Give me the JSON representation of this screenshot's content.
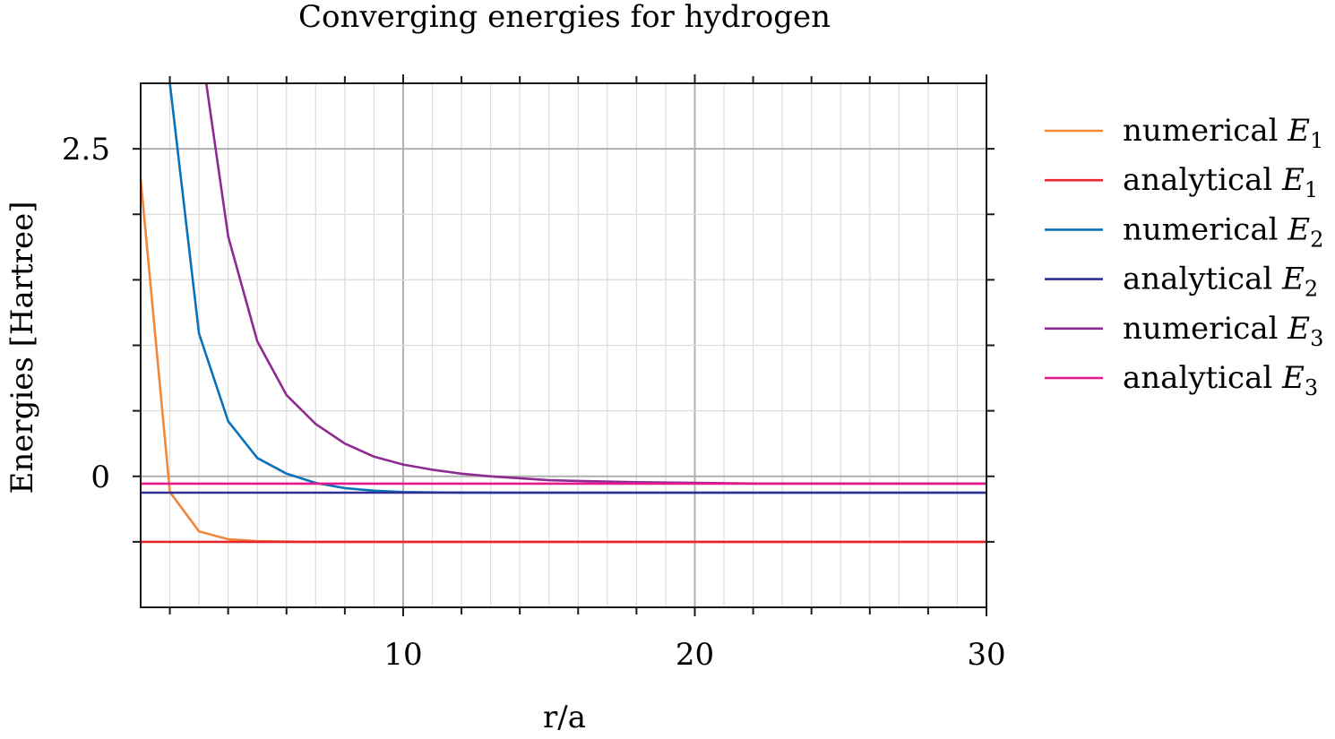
{
  "chart_data": {
    "type": "line",
    "title": "Converging energies for hydrogen",
    "xlabel": "r/a",
    "ylabel": "Energies [Hartree]",
    "xlim": [
      1,
      30
    ],
    "ylim": [
      -1,
      3
    ],
    "xticks": [
      10,
      20,
      30
    ],
    "xtick_labels": [
      "10",
      "20",
      "30"
    ],
    "yticks": [
      0,
      2.5
    ],
    "ytick_labels": [
      "0",
      "2.5"
    ],
    "grid": true,
    "legend_position": "outside-right",
    "series": [
      {
        "name": "numerical E",
        "subscript": "1",
        "color": "#f0883a",
        "x": [
          1,
          2,
          3,
          4,
          5,
          6,
          7,
          8,
          9,
          10,
          12,
          15,
          20,
          25,
          30
        ],
        "y": [
          2.27,
          -0.12,
          -0.42,
          -0.48,
          -0.495,
          -0.499,
          -0.5,
          -0.5,
          -0.5,
          -0.5,
          -0.5,
          -0.5,
          -0.5,
          -0.5,
          -0.5
        ]
      },
      {
        "name": "analytical E",
        "subscript": "1",
        "color": "#e8242c",
        "x": [
          1,
          30
        ],
        "y": [
          -0.5,
          -0.5
        ]
      },
      {
        "name": "numerical E",
        "subscript": "2",
        "color": "#0a72ba",
        "x": [
          2,
          3,
          4,
          5,
          6,
          7,
          8,
          9,
          10,
          11,
          12,
          14,
          16,
          20,
          25,
          30
        ],
        "y": [
          3.0,
          1.09,
          0.42,
          0.14,
          0.02,
          -0.05,
          -0.09,
          -0.11,
          -0.12,
          -0.123,
          -0.124,
          -0.125,
          -0.125,
          -0.125,
          -0.125,
          -0.125
        ]
      },
      {
        "name": "analytical E",
        "subscript": "2",
        "color": "#2e3192",
        "x": [
          1,
          30
        ],
        "y": [
          -0.125,
          -0.125
        ]
      },
      {
        "name": "numerical E",
        "subscript": "3",
        "color": "#8e2a91",
        "x": [
          3.25,
          4,
          5,
          6,
          7,
          8,
          9,
          10,
          11,
          12,
          13,
          14,
          15,
          16,
          18,
          20,
          22,
          25,
          30
        ],
        "y": [
          3.0,
          1.83,
          1.03,
          0.62,
          0.4,
          0.25,
          0.15,
          0.09,
          0.05,
          0.02,
          0.0,
          -0.015,
          -0.03,
          -0.035,
          -0.045,
          -0.05,
          -0.055,
          -0.055,
          -0.055
        ]
      },
      {
        "name": "analytical E",
        "subscript": "3",
        "color": "#e6198c",
        "x": [
          1,
          30
        ],
        "y": [
          -0.0556,
          -0.0556
        ]
      }
    ]
  }
}
